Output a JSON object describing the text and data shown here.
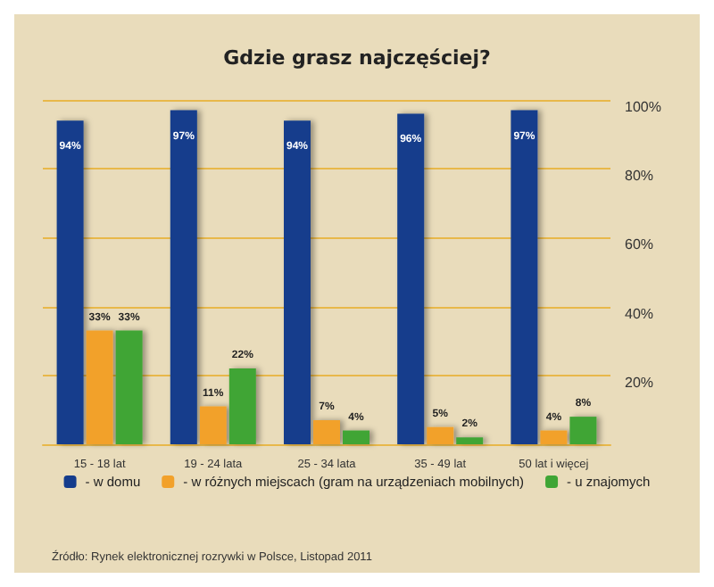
{
  "chart_data": {
    "type": "bar",
    "title": "Gdzie grasz najczęściej?",
    "categories": [
      "15 - 18 lat",
      "19 - 24 lata",
      "25 - 34 lata",
      "35 - 49 lat",
      "50 lat i więcej"
    ],
    "series": [
      {
        "name": "- w domu",
        "color": "#143c8c",
        "values": [
          94,
          97,
          94,
          96,
          97
        ],
        "value_labels": [
          "94%",
          "97%",
          "94%",
          "96%",
          "97%"
        ]
      },
      {
        "name": "- w różnych miejscach (gram na urządzeniach mobilnych)",
        "color": "#f2a12a",
        "values": [
          33,
          11,
          7,
          5,
          4
        ],
        "value_labels": [
          "33%",
          "11%",
          "7%",
          "5%",
          "4%"
        ]
      },
      {
        "name": "- u znajomych",
        "color": "#3fa535",
        "values": [
          33,
          22,
          4,
          2,
          8
        ],
        "value_labels": [
          "33%",
          "22%",
          "4%",
          "2%",
          "8%"
        ]
      }
    ],
    "ylim": [
      0,
      100
    ],
    "yticks": [
      {
        "value": 0,
        "label": null
      },
      {
        "value": 20,
        "label": "20%"
      },
      {
        "value": 40,
        "label": "40%"
      },
      {
        "value": 60,
        "label": "60%"
      },
      {
        "value": 80,
        "label": "80%"
      },
      {
        "value": 100,
        "label": "100%"
      }
    ],
    "grid": "y",
    "legend": "bottom",
    "annotations": [
      "Źródło: Rynek elektronicznej rozrywki w Polsce, Listopad 2011"
    ]
  }
}
